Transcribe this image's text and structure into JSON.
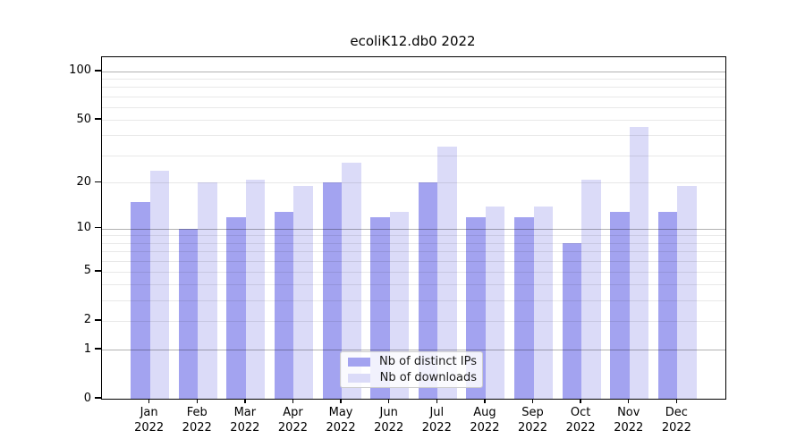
{
  "title": "ecoliK12.db0 2022",
  "chart_data": {
    "type": "bar",
    "title": "ecoliK12.db0 2022",
    "categories": [
      "Jan",
      "Feb",
      "Mar",
      "Apr",
      "May",
      "Jun",
      "Jul",
      "Aug",
      "Sep",
      "Oct",
      "Nov",
      "Dec"
    ],
    "category_year": "2022",
    "series": [
      {
        "name": "Nb of distinct IPs",
        "color": "#a3a3f0",
        "values": [
          15,
          10,
          12,
          13,
          20,
          12,
          20,
          12,
          12,
          8,
          13,
          13
        ]
      },
      {
        "name": "Nb of downloads",
        "color": "#dbdbf8",
        "values": [
          24,
          20,
          21,
          19,
          27,
          13,
          34,
          14,
          14,
          21,
          45,
          19
        ]
      }
    ],
    "xlabel": "",
    "ylabel": "",
    "yscale": "log10(value+1)",
    "ylim": [
      0,
      122
    ],
    "ytick_values": [
      0,
      1,
      2,
      5,
      10,
      20,
      50,
      100
    ],
    "grid": {
      "on": true,
      "major_lines": [
        1,
        10,
        100
      ],
      "minor_lines": [
        2,
        3,
        4,
        5,
        6,
        7,
        8,
        9,
        20,
        30,
        40,
        50,
        60,
        70,
        80,
        90
      ],
      "drawn_above_bars": true
    },
    "legend_position": "lower center"
  },
  "colors": {
    "background": "#ffffff",
    "bar_distinct_ips": "#a3a3f0",
    "bar_downloads": "#dbdbf8",
    "grid_major": "#b4b4b4",
    "grid_minor": "#e8e8e8",
    "axis_spine": "#000000",
    "legend_border": "#cccccc",
    "text": "#000000"
  }
}
